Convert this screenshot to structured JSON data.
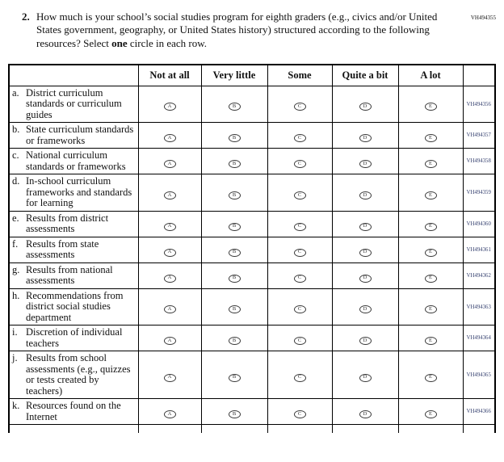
{
  "page": {
    "top_right_code": "VH494355"
  },
  "question": {
    "number": "2.",
    "text_before": "How much is your school’s social studies program for eighth graders (e.g., civics and/or United States government, geography, or United States history) structured according to the following resources? Select ",
    "bold_word": "one",
    "text_after": " circle in each row."
  },
  "table": {
    "columns": [
      "Not at all",
      "Very little",
      "Some",
      "Quite a bit",
      "A lot"
    ],
    "option_letters": [
      "A",
      "B",
      "C",
      "D",
      "E"
    ],
    "rows": [
      {
        "letter": "a.",
        "label": "District curriculum standards or curriculum guides",
        "code": "VH494356"
      },
      {
        "letter": "b.",
        "label": "State curriculum standards or frameworks",
        "code": "VH494357"
      },
      {
        "letter": "c.",
        "label": "National curriculum standards or frameworks",
        "code": "VH494358"
      },
      {
        "letter": "d.",
        "label": "In-school curriculum frameworks and standards for learning",
        "code": "VH494359"
      },
      {
        "letter": "e.",
        "label": "Results from district assessments",
        "code": "VH494360"
      },
      {
        "letter": "f.",
        "label": "Results from state assessments",
        "code": "VH494361"
      },
      {
        "letter": "g.",
        "label": "Results from national assessments",
        "code": "VH494362"
      },
      {
        "letter": "h.",
        "label": "Recommendations from district social studies department",
        "code": "VH494363"
      },
      {
        "letter": "i.",
        "label": "Discretion of individual teachers",
        "code": "VH494364"
      },
      {
        "letter": "j.",
        "label": "Results from school assessments (e.g., quizzes or tests created by teachers)",
        "code": "VH494365"
      },
      {
        "letter": "k.",
        "label": "Resources found on the Internet",
        "code": "VH494366"
      }
    ]
  },
  "colors": {
    "code_text": "#35406f",
    "border": "#000000"
  }
}
